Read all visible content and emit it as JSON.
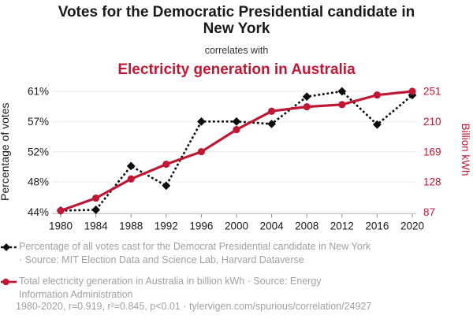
{
  "header": {
    "title": "Votes for the Democratic Presidential candidate in New York",
    "connector": "correlates with",
    "subtitle": "Electricity generation in Australia"
  },
  "colors": {
    "accent_red": "#bf1835",
    "series_black": "#0d0d0d",
    "muted_text": "#a1a1a1",
    "grid_line": "#ebebeb",
    "axis_line": "#bfbfbf",
    "tick_mark": "#8f8f8f",
    "tick_label": "#1a1a1a"
  },
  "chart_data": {
    "type": "line",
    "x": [
      1980,
      1984,
      1988,
      1992,
      1996,
      2000,
      2004,
      2008,
      2012,
      2016,
      2020
    ],
    "x_tick_labels": [
      "1980",
      "1984",
      "1988",
      "1992",
      "1996",
      "2000",
      "2004",
      "2008",
      "2012",
      "2016",
      "2020"
    ],
    "left_axis": {
      "label": "Percentage of votes",
      "tick_labels": [
        "44%",
        "48%",
        "52%",
        "57%",
        "61%"
      ],
      "tick_values": [
        44,
        48,
        52,
        57,
        61
      ]
    },
    "right_axis": {
      "label": "Billion kWh",
      "tick_labels": [
        "87",
        "128",
        "169",
        "210",
        "251"
      ],
      "tick_values": [
        87,
        128,
        169,
        210,
        251
      ]
    },
    "grid": true,
    "legend_position": "bottom",
    "series": [
      {
        "name": "Percentage of all votes cast for the Democrat Presidential candidate in New York",
        "axis": "left",
        "color": "#0d0d0d",
        "line_style": "dashed",
        "marker": "diamond",
        "values": [
          44.2,
          44.3,
          50.1,
          47.5,
          57.0,
          57.0,
          56.6,
          60.3,
          61.0,
          56.5,
          60.5
        ]
      },
      {
        "name": "Total electricity generation in Australia in billion kWh",
        "axis": "right",
        "color": "#bf1835",
        "line_style": "solid",
        "marker": "circle",
        "values": [
          89,
          106,
          132,
          152,
          169,
          199,
          224,
          230,
          233,
          246,
          251
        ]
      }
    ]
  },
  "legend": {
    "items": [
      {
        "marker": "diamond-dashed",
        "color": "#0d0d0d",
        "lines": [
          "Percentage of all votes cast for the Democrat Presidential candidate in New York",
          "· Source: MIT Election Data and Science Lab, Harvard Dataverse"
        ]
      },
      {
        "marker": "circle-solid",
        "color": "#bf1835",
        "lines": [
          "Total electricity generation in Australia in billion kWh · Source: Energy",
          "Information Administration"
        ]
      }
    ]
  },
  "footer": {
    "text": "1980-2020, r=0.919, r²=0.845, p<0.01 · tylervigen.com/spurious/correlation/24927"
  }
}
